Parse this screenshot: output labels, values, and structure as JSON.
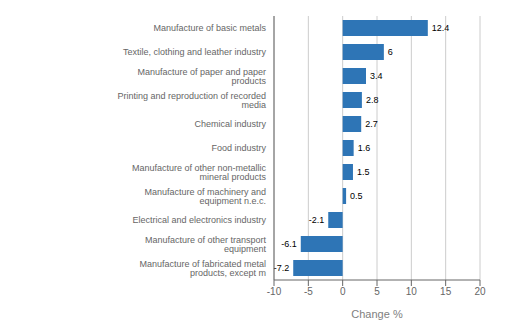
{
  "chart_data": {
    "type": "bar",
    "orientation": "horizontal",
    "categories": [
      "Manufacture of fabricated metal products, except m",
      "Manufacture of other transport equipment",
      "Electrical and electronics industry",
      "Manufacture of machinery and equipment n.e.c.",
      "Manufacture of other non-metallic mineral products",
      "Food industry",
      "Chemical industry",
      "Printing and reproduction of recorded media",
      "Manufacture of paper and paper products",
      "Textile, clothing and leather industry",
      "Manufacture of basic metals"
    ],
    "values": [
      -7.2,
      -6.1,
      -2.1,
      0.5,
      1.5,
      1.6,
      2.7,
      2.8,
      3.4,
      6.0,
      12.4
    ],
    "color": "#2E75B6",
    "xlabel": "Change %",
    "xlim": [
      -10,
      20
    ],
    "xticks": [
      -10,
      -5,
      0,
      5,
      10,
      15,
      20
    ],
    "grid": true,
    "data_labels": true
  }
}
